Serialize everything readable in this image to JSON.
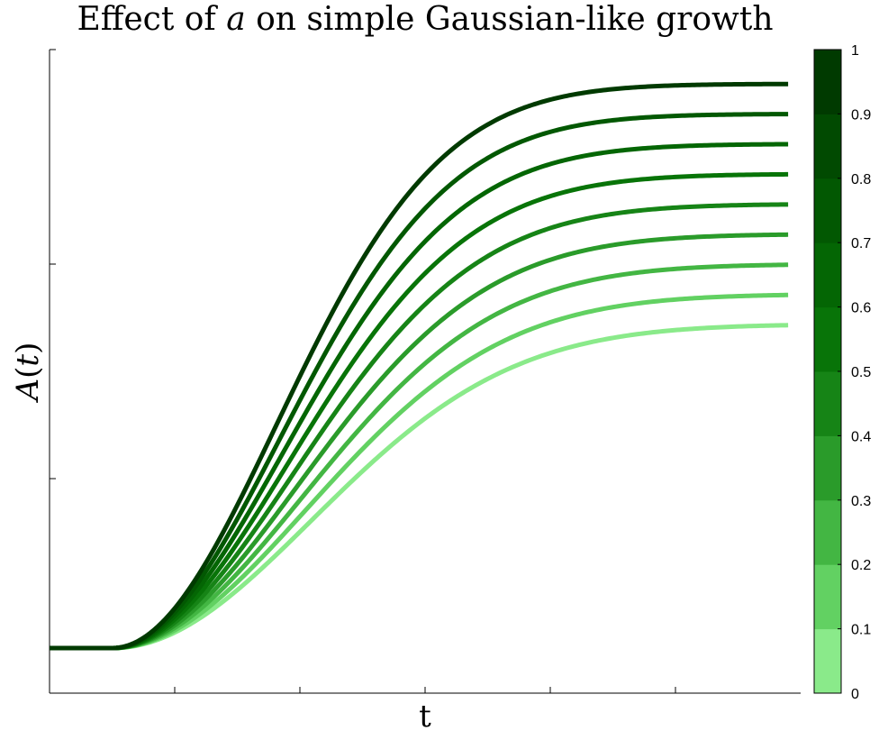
{
  "chart_data": {
    "type": "line",
    "title": "Effect of a on simple Gaussian-like growth",
    "title_prefix": "Effect of ",
    "title_var": "a",
    "title_suffix": " on simple Gaussian-like growth",
    "xlabel": "t",
    "ylabel": "A(t)",
    "ylabel_func": "A",
    "ylabel_arg": "t",
    "xlim": [
      0,
      12
    ],
    "ylim": [
      0,
      3
    ],
    "x_ticks_labels_shown": false,
    "y_ticks_labels_shown": false,
    "grid": false,
    "legend": "none",
    "colorbar": {
      "min": 0,
      "max": 1,
      "tick_labels": [
        "0",
        "0.1",
        "0.2",
        "0.3",
        "0.4",
        "0.5",
        "0.6",
        "0.7",
        "0.8",
        "0.9",
        "1"
      ],
      "colors": [
        "#8aea8a",
        "#62d162",
        "#43b643",
        "#2a9b2a",
        "#168416",
        "#087408",
        "#046604",
        "#025802",
        "#014a01",
        "#003a00"
      ]
    },
    "curve_model": "A0 + (Amax - A0) * (1 - exp(-((t - t0)/w)^2)) for t >= t0",
    "series": [
      {
        "A0": 0.21,
        "Amax": 1.72,
        "t0": 1.0,
        "w": 4.5,
        "color": "#8aea8a"
      },
      {
        "A0": 0.21,
        "Amax": 1.86,
        "t0": 1.0,
        "w": 4.4,
        "color": "#62d162"
      },
      {
        "A0": 0.21,
        "Amax": 2.0,
        "t0": 1.0,
        "w": 4.3,
        "color": "#43b643"
      },
      {
        "A0": 0.21,
        "Amax": 2.14,
        "t0": 1.0,
        "w": 4.2,
        "color": "#2a9b2a"
      },
      {
        "A0": 0.21,
        "Amax": 2.28,
        "t0": 1.0,
        "w": 4.1,
        "color": "#168416"
      },
      {
        "A0": 0.21,
        "Amax": 2.42,
        "t0": 1.0,
        "w": 4.0,
        "color": "#087408"
      },
      {
        "A0": 0.21,
        "Amax": 2.56,
        "t0": 1.0,
        "w": 3.9,
        "color": "#046604"
      },
      {
        "A0": 0.21,
        "Amax": 2.7,
        "t0": 1.0,
        "w": 3.8,
        "color": "#025802"
      },
      {
        "A0": 0.21,
        "Amax": 2.84,
        "t0": 1.0,
        "w": 3.7,
        "color": "#003a00"
      }
    ]
  }
}
